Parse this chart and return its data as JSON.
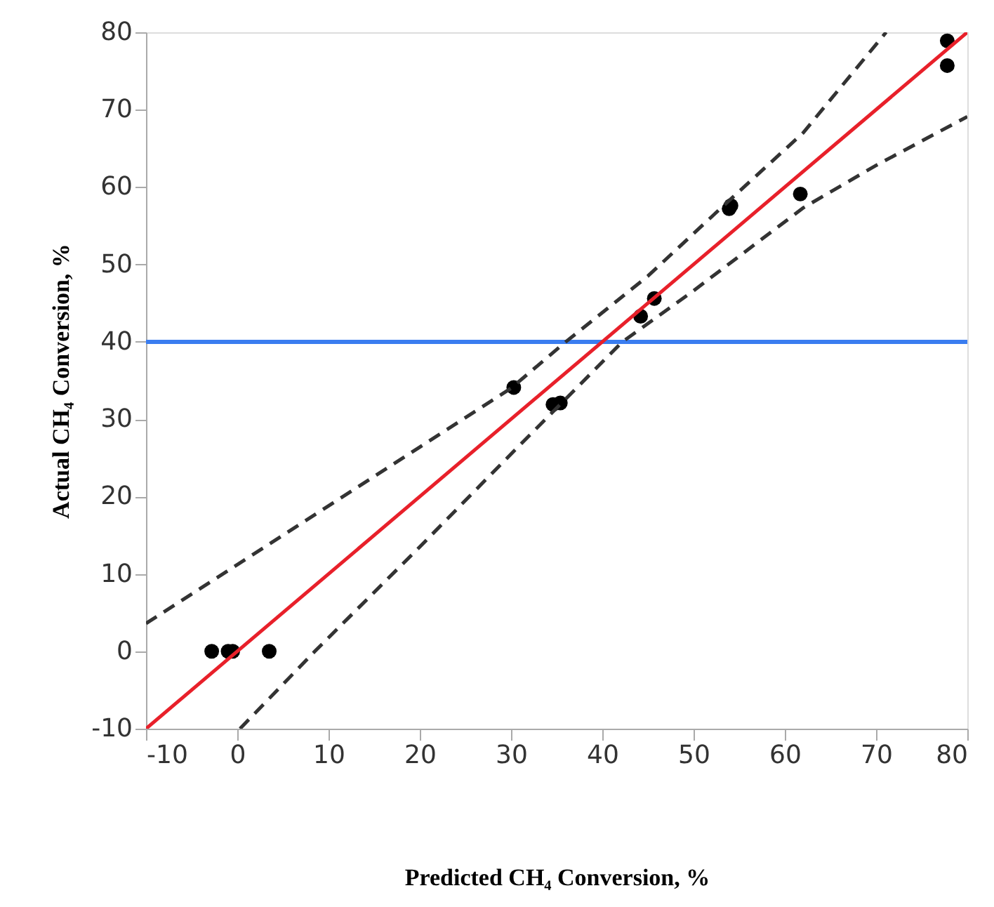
{
  "chart_data": {
    "type": "scatter",
    "xlabel": "Predicted CH₄ Conversion, %",
    "ylabel": "Actual CH₄ Conversion, %",
    "xlim": [
      -10,
      80
    ],
    "ylim": [
      -10,
      80
    ],
    "xticks": [
      -10,
      0,
      10,
      20,
      30,
      40,
      50,
      60,
      70,
      80
    ],
    "yticks": [
      -10,
      0,
      10,
      20,
      30,
      40,
      50,
      60,
      70,
      80
    ],
    "grid": false,
    "ref_lines": [
      {
        "axis": "y",
        "value": 40,
        "color": "#3a7df0"
      }
    ],
    "series": [
      {
        "color": "#000000",
        "marker": "circle",
        "x": [
          -2.8,
          -1,
          -0.5,
          3.5,
          30.3,
          34.6,
          35.4,
          44.2,
          45.7,
          53.9,
          54.1,
          61.7,
          77.8,
          77.8
        ],
        "values": [
          0,
          0,
          0,
          0,
          34.1,
          31.9,
          32.1,
          43.3,
          45.6,
          57.2,
          57.6,
          59.1,
          78.9,
          75.7
        ]
      },
      {
        "type": "line",
        "color": "#e8202a",
        "line_style": "solid",
        "marker": "none",
        "x": [
          -10,
          80
        ],
        "values": [
          -10,
          80
        ]
      },
      {
        "type": "line",
        "color": "#333333",
        "line_style": "dashed",
        "marker": "none",
        "x": [
          -10,
          0,
          10,
          20,
          30,
          36,
          45,
          53.2,
          62,
          71.1
        ],
        "values": [
          3.6,
          11.2,
          18.8,
          26.4,
          34,
          40,
          48.5,
          57.5,
          67,
          80
        ]
      },
      {
        "type": "line",
        "color": "#333333",
        "line_style": "dashed",
        "marker": "none",
        "x": [
          0.3,
          8.5,
          20,
          30,
          42.2,
          50,
          62,
          70,
          80
        ],
        "values": [
          -10,
          0,
          13.5,
          25.5,
          40,
          46.6,
          57.3,
          62.8,
          69.1
        ]
      }
    ]
  }
}
